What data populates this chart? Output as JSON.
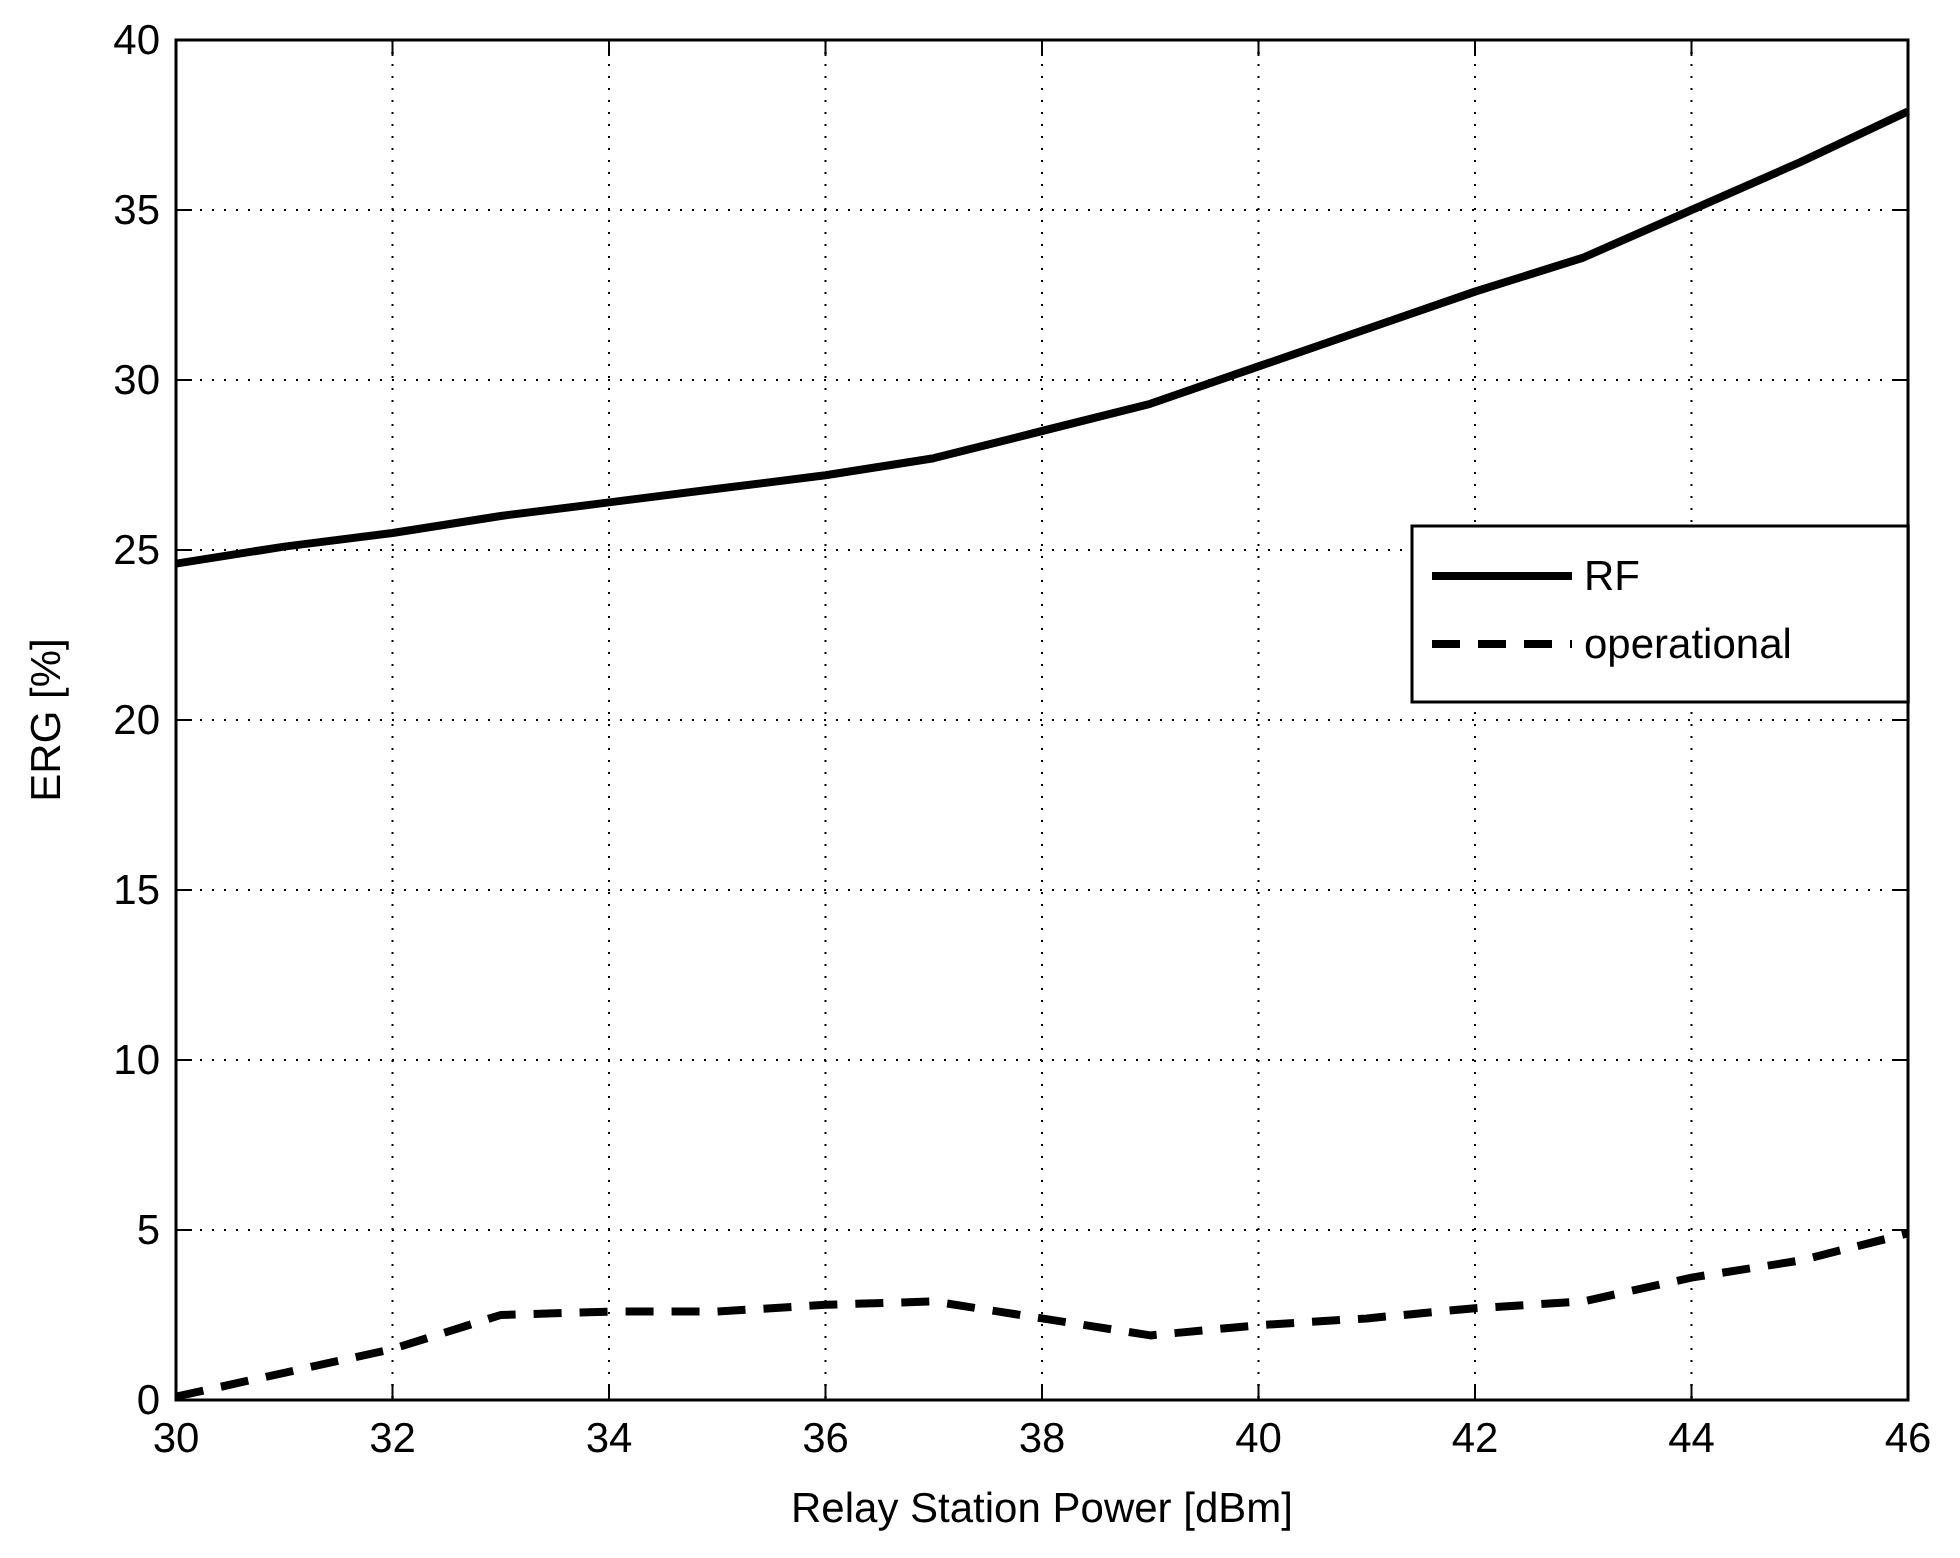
{
  "chart_data": {
    "type": "line",
    "xlabel": "Relay Station Power [dBm]",
    "ylabel": "ERG [%]",
    "xlim": [
      30,
      46
    ],
    "xticks": [
      30,
      32,
      34,
      36,
      38,
      40,
      42,
      44,
      46
    ],
    "ylim": [
      0,
      40
    ],
    "yticks": [
      0,
      5,
      10,
      15,
      20,
      25,
      30,
      35,
      40
    ],
    "grid": true,
    "legend": "right",
    "series": [
      {
        "name": "RF",
        "color": "#000000",
        "line_style": "solid",
        "x": [
          30,
          31,
          32,
          33,
          34,
          35,
          36,
          37,
          38,
          39,
          40,
          41,
          42,
          43,
          44,
          45,
          46
        ],
        "values": [
          24.6,
          25.1,
          25.5,
          26.0,
          26.4,
          26.8,
          27.2,
          27.7,
          28.5,
          29.3,
          30.4,
          31.5,
          32.6,
          33.6,
          35.0,
          36.4,
          37.9
        ]
      },
      {
        "name": "operational",
        "color": "#000000",
        "line_style": "dashed",
        "x": [
          30,
          31,
          32,
          33,
          34,
          35,
          36,
          37,
          38,
          39,
          40,
          41,
          42,
          43,
          44,
          45,
          46
        ],
        "values": [
          0.1,
          0.8,
          1.5,
          2.5,
          2.6,
          2.6,
          2.8,
          2.9,
          2.4,
          1.9,
          2.2,
          2.4,
          2.7,
          2.9,
          3.6,
          4.1,
          4.9
        ]
      }
    ]
  }
}
